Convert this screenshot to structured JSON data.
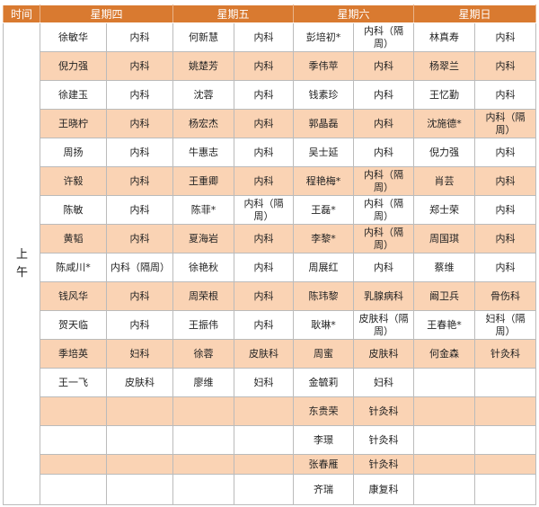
{
  "table": {
    "header": [
      "时间",
      "星期四",
      "星期五",
      "星期六",
      "星期日"
    ],
    "time_slot": "上午",
    "rows": [
      [
        "徐敏华",
        "内科",
        "何新慧",
        "内科",
        "彭培初*",
        "内科（隔周）",
        "林真寿",
        "内科"
      ],
      [
        "倪力强",
        "内科",
        "姚楚芳",
        "内科",
        "季伟苹",
        "内科",
        "杨翠兰",
        "内科"
      ],
      [
        "徐建玉",
        "内科",
        "沈蓉",
        "内科",
        "钱素珍",
        "内科",
        "王忆勤",
        "内科"
      ],
      [
        "王晓柠",
        "内科",
        "杨宏杰",
        "内科",
        "郭晶磊",
        "内科",
        "沈施德*",
        "内科（隔周）"
      ],
      [
        "周扬",
        "内科",
        "牛惠志",
        "内科",
        "吴士延",
        "内科",
        "倪力强",
        "内科"
      ],
      [
        "许毅",
        "内科",
        "王重卿",
        "内科",
        "程艳梅*",
        "内科（隔周）",
        "肖芸",
        "内科"
      ],
      [
        "陈敏",
        "内科",
        "陈菲*",
        "内科（隔周）",
        "王磊*",
        "内科（隔周）",
        "郑士荣",
        "内科"
      ],
      [
        "黄韬",
        "内科",
        "夏海岩",
        "内科",
        "李黎*",
        "内科（隔周）",
        "周国琪",
        "内科"
      ],
      [
        "陈咸川*",
        "内科（隔周）",
        "徐艳秋",
        "内科",
        "周展红",
        "内科",
        "蔡维",
        "内科"
      ],
      [
        "钱风华",
        "内科",
        "周荣根",
        "内科",
        "陈玮黎",
        "乳腺病科",
        "阚卫兵",
        "骨伤科"
      ],
      [
        "贺天临",
        "内科",
        "王振伟",
        "内科",
        "耿琳*",
        "皮肤科（隔周）",
        "王春艳*",
        "妇科（隔周）"
      ],
      [
        "季培英",
        "妇科",
        "徐蓉",
        "皮肤科",
        "周蜜",
        "皮肤科",
        "何金森",
        "针灸科"
      ],
      [
        "王一飞",
        "皮肤科",
        "廖维",
        "妇科",
        "金毓莉",
        "妇科",
        null,
        null
      ],
      [
        null,
        null,
        null,
        null,
        "东贵荣",
        "针灸科",
        null,
        null
      ],
      [
        null,
        null,
        null,
        null,
        "李璟",
        "针灸科",
        null,
        null
      ],
      [
        null,
        null,
        null,
        null,
        "张春雁",
        "针灸科",
        null,
        null
      ],
      [
        null,
        null,
        null,
        null,
        "齐瑞",
        "康复科",
        null,
        null
      ]
    ]
  }
}
